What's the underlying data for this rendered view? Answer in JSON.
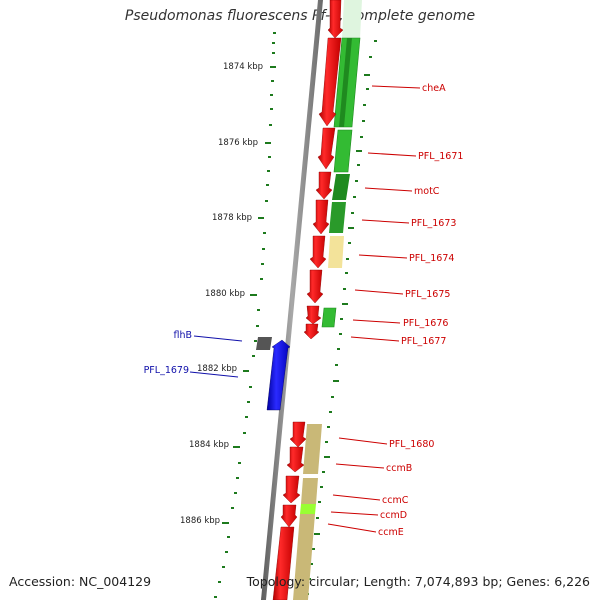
{
  "title": "Pseudomonas fluorescens Pf-5, complete genome",
  "footer": {
    "accession": "Accession: NC_004129",
    "summary": "Topology: circular; Length: 7,074,893 bp; Genes: 6,226"
  },
  "scale": {
    "unit": "kbp",
    "labels": [
      "1874 kbp",
      "1876 kbp",
      "1878 kbp",
      "1880 kbp",
      "1882 kbp",
      "1884 kbp",
      "1886 kbp"
    ]
  },
  "gene_labels": {
    "right": [
      "cheA",
      "PFL_1671",
      "motC",
      "PFL_1673",
      "PFL_1674",
      "PFL_1675",
      "PFL_1676",
      "PFL_1677",
      "PFL_1680",
      "ccmB",
      "ccmC",
      "ccmD",
      "ccmE"
    ],
    "left": [
      "flhB",
      "PFL_1679"
    ]
  },
  "colors": {
    "forward_cds": "#ee1111",
    "reverse_cds": "#1a1aee",
    "backbone": "#808080",
    "cog_green": "#33bb33",
    "cog_dark_green": "#1f8a1f",
    "cog_light_yellow": "#f3e39a",
    "cog_khaki": "#c9b877",
    "cog_lime": "#99ff33",
    "cog_grey": "#555555",
    "tick_green": "#1d7a1d",
    "label_red": "#cc0000",
    "label_blue": "#1010aa"
  }
}
